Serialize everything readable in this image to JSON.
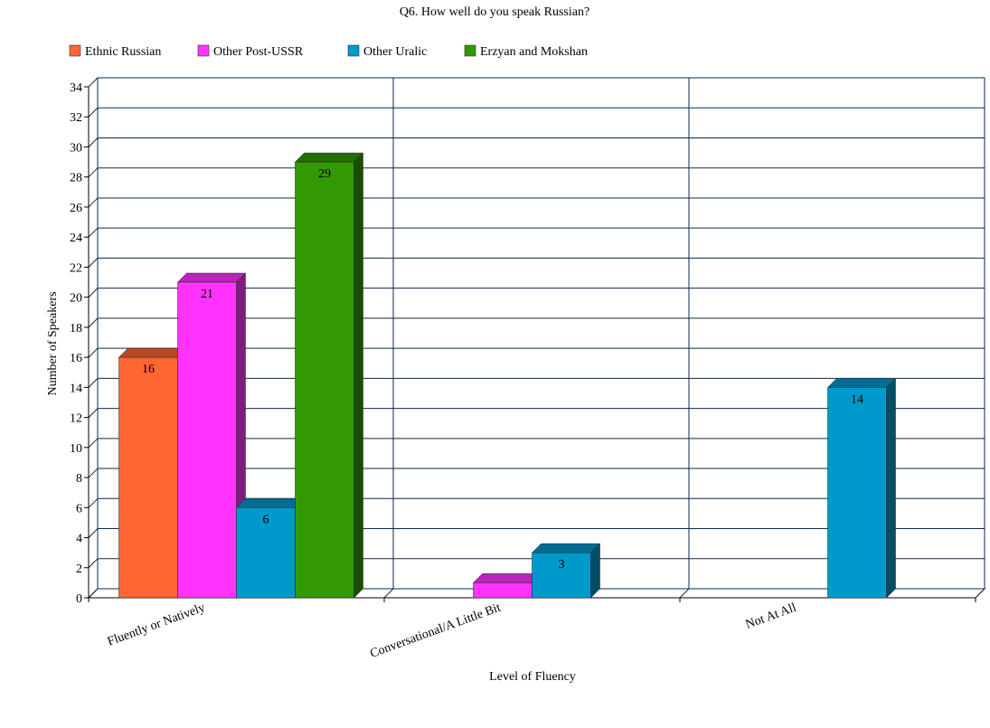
{
  "chart_data": {
    "type": "bar",
    "title": "Q6.  How well do you speak Russian?",
    "xlabel": "Level of Fluency",
    "ylabel": "Number of Speakers",
    "categories": [
      "Fluently or Natively",
      "Conversational/A Little Bit",
      "Not At All"
    ],
    "series": [
      {
        "name": "Ethnic Russian",
        "color": "#ff6633",
        "values": [
          16,
          0,
          0
        ]
      },
      {
        "name": "Other Post-USSR",
        "color": "#ff33ff",
        "values": [
          21,
          1,
          0
        ]
      },
      {
        "name": "Other Uralic",
        "color": "#0099cc",
        "values": [
          6,
          3,
          14
        ]
      },
      {
        "name": "Erzyan and Mokshan",
        "color": "#339900",
        "values": [
          29,
          0,
          0
        ]
      }
    ],
    "ylim": [
      0,
      34
    ],
    "yticks": [
      0,
      2,
      4,
      6,
      8,
      10,
      12,
      14,
      16,
      18,
      20,
      22,
      24,
      26,
      28,
      30,
      32,
      34
    ],
    "grid": true,
    "legend_position": "top",
    "data_labels": {
      "Fluently or Natively": [
        "16",
        "21",
        "6",
        "29"
      ],
      "Conversational/A Little Bit": [
        "",
        "",
        "3",
        ""
      ],
      "Not At All": [
        "",
        "",
        "14",
        ""
      ]
    }
  }
}
